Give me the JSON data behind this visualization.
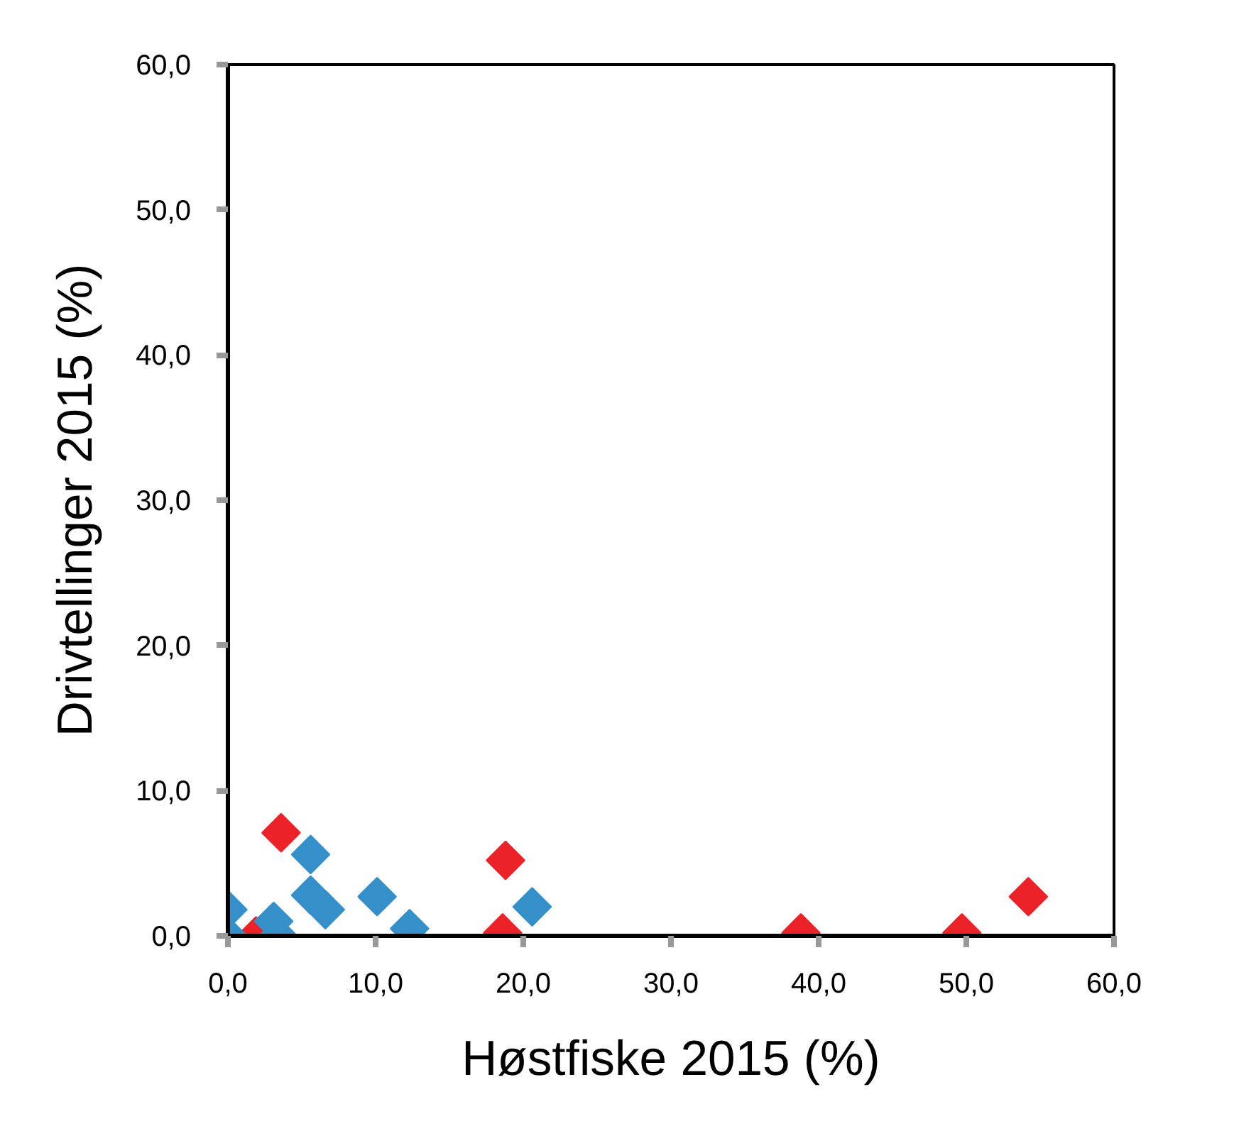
{
  "chart_data": {
    "type": "scatter",
    "xlabel": "Høstfiske 2015 (%)",
    "ylabel": "Drivtellinger 2015 (%)",
    "xlim": [
      0,
      60
    ],
    "ylim": [
      0,
      60
    ],
    "xticks": [
      {
        "value": 0,
        "label": "0,0"
      },
      {
        "value": 10,
        "label": "10,0"
      },
      {
        "value": 20,
        "label": "20,0"
      },
      {
        "value": 30,
        "label": "30,0"
      },
      {
        "value": 40,
        "label": "40,0"
      },
      {
        "value": 50,
        "label": "50,0"
      },
      {
        "value": 60,
        "label": "60,0"
      }
    ],
    "yticks": [
      {
        "value": 0,
        "label": "0,0"
      },
      {
        "value": 10,
        "label": "10,0"
      },
      {
        "value": 20,
        "label": "20,0"
      },
      {
        "value": 30,
        "label": "30,0"
      },
      {
        "value": 40,
        "label": "40,0"
      },
      {
        "value": 50,
        "label": "50,0"
      },
      {
        "value": 60,
        "label": "60,0"
      }
    ],
    "marker": "diamond",
    "grid": false,
    "series": [
      {
        "color": "#3590c9",
        "x": [
          0,
          0,
          3.1,
          3.4,
          5.6,
          5.6,
          6.6,
          10.1,
          12.3,
          20.6
        ],
        "values": [
          1.8,
          0,
          1.0,
          0,
          5.6,
          2.8,
          1.8,
          2.7,
          0.5,
          2.0
        ]
      },
      {
        "color": "#ec2229",
        "x": [
          3.6,
          1.9,
          18.8,
          18.6,
          38.8,
          49.7,
          54.2
        ],
        "values": [
          7.1,
          0,
          5.2,
          0.2,
          0.2,
          0.2,
          2.7
        ]
      }
    ]
  }
}
